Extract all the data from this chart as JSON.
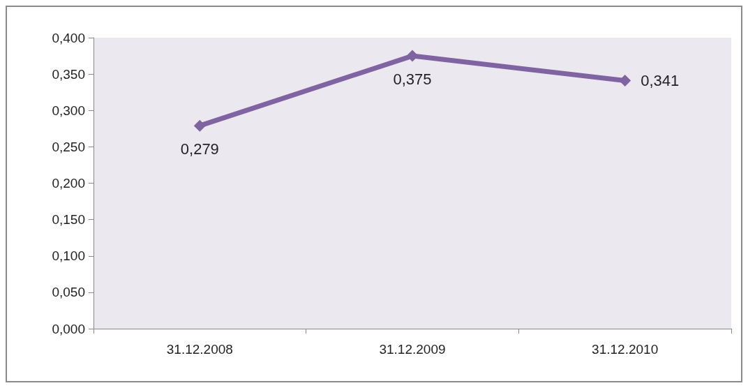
{
  "chart_data": {
    "type": "line",
    "categories": [
      "31.12.2008",
      "31.12.2009",
      "31.12.2010"
    ],
    "series": [
      {
        "color": "#8064a2",
        "values": [
          0.279,
          0.375,
          0.341
        ],
        "value_labels": [
          "0,279",
          "0,375",
          "0,341"
        ]
      }
    ],
    "ylim": [
      0,
      0.4
    ],
    "yticks": [
      {
        "value": 0,
        "label": "0,000"
      },
      {
        "value": 0.05,
        "label": "0,050"
      },
      {
        "value": 0.1,
        "label": "0,100"
      },
      {
        "value": 0.15,
        "label": "0,150"
      },
      {
        "value": 0.2,
        "label": "0,200"
      },
      {
        "value": 0.25,
        "label": "0,250"
      },
      {
        "value": 0.3,
        "label": "0,300"
      },
      {
        "value": 0.35,
        "label": "0,350"
      },
      {
        "value": 0.4,
        "label": "0,400"
      }
    ],
    "marker": "diamond",
    "line_style": "solid"
  }
}
